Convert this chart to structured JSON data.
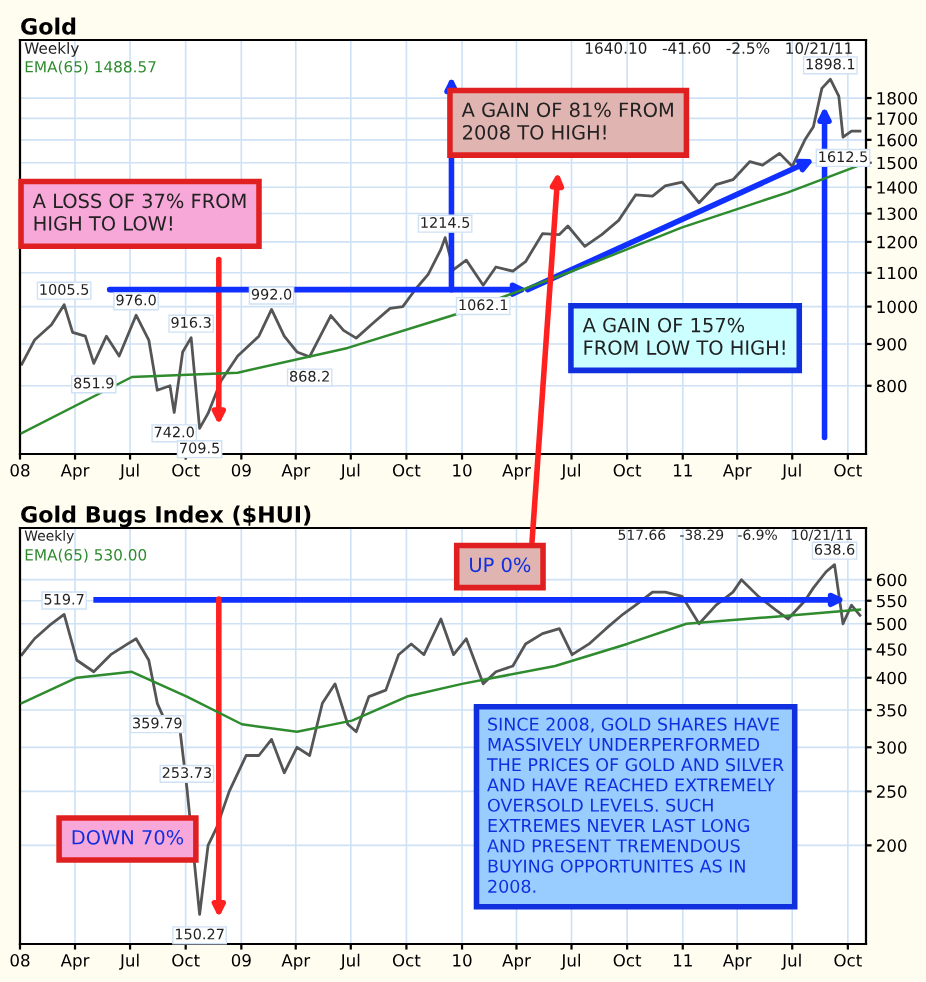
{
  "chart_data": [
    {
      "type": "line",
      "title": "Gold",
      "log": true,
      "grid": true,
      "legend": "top left",
      "xlim": [
        "2008-01-01",
        "2011-10-31"
      ],
      "ylim": [
        660,
        2120
      ],
      "xticks": [
        {
          "value": "2008-01-01",
          "label": "08"
        },
        {
          "value": "2008-04-01",
          "label": "Apr"
        },
        {
          "value": "2008-07-01",
          "label": "Jul"
        },
        {
          "value": "2008-10-01",
          "label": "Oct"
        },
        {
          "value": "2009-01-01",
          "label": "09"
        },
        {
          "value": "2009-04-01",
          "label": "Apr"
        },
        {
          "value": "2009-07-01",
          "label": "Jul"
        },
        {
          "value": "2009-10-01",
          "label": "Oct"
        },
        {
          "value": "2010-01-01",
          "label": "10"
        },
        {
          "value": "2010-04-01",
          "label": "Apr"
        },
        {
          "value": "2010-07-01",
          "label": "Jul"
        },
        {
          "value": "2010-10-01",
          "label": "Oct"
        },
        {
          "value": "2011-01-01",
          "label": "11"
        },
        {
          "value": "2011-04-01",
          "label": "Apr"
        },
        {
          "value": "2011-07-01",
          "label": "Jul"
        },
        {
          "value": "2011-10-01",
          "label": "Oct"
        }
      ],
      "yticks": [
        800,
        900,
        1000,
        1100,
        1200,
        1300,
        1400,
        1500,
        1600,
        1700,
        1800
      ],
      "series": [
        {
          "color": "#555555",
          "x": [
            "2008-01-04",
            "2008-01-25",
            "2008-02-22",
            "2008-03-14",
            "2008-03-28",
            "2008-04-18",
            "2008-05-02",
            "2008-05-23",
            "2008-06-13",
            "2008-07-11",
            "2008-08-01",
            "2008-08-15",
            "2008-09-05",
            "2008-09-12",
            "2008-09-26",
            "2008-10-10",
            "2008-10-24",
            "2008-11-07",
            "2008-11-28",
            "2008-12-26",
            "2009-01-30",
            "2009-02-20",
            "2009-03-13",
            "2009-04-03",
            "2009-04-24",
            "2009-05-29",
            "2009-06-19",
            "2009-07-10",
            "2009-08-07",
            "2009-09-04",
            "2009-09-25",
            "2009-10-16",
            "2009-11-06",
            "2009-11-27",
            "2009-12-04",
            "2009-12-18",
            "2010-01-08",
            "2010-02-05",
            "2010-02-26",
            "2010-03-26",
            "2010-04-16",
            "2010-05-14",
            "2010-06-11",
            "2010-06-25",
            "2010-07-23",
            "2010-08-20",
            "2010-09-17",
            "2010-10-15",
            "2010-11-12",
            "2010-12-03",
            "2010-12-31",
            "2011-01-28",
            "2011-02-25",
            "2011-03-25",
            "2011-04-22",
            "2011-05-13",
            "2011-06-10",
            "2011-07-01",
            "2011-07-22",
            "2011-08-05",
            "2011-08-19",
            "2011-09-02",
            "2011-09-16",
            "2011-09-23",
            "2011-10-07",
            "2011-10-21"
          ],
          "values": [
            850,
            910,
            950,
            1005.5,
            930,
            920,
            851.9,
            920,
            870,
            976.0,
            910,
            790,
            800,
            742.0,
            880,
            916.3,
            709.5,
            740,
            810,
            870,
            920,
            992.0,
            920,
            880,
            868.2,
            975,
            935,
            915,
            955,
            995,
            1000,
            1050,
            1095,
            1175,
            1214.5,
            1110,
            1140,
            1062.1,
            1118,
            1105,
            1135,
            1228,
            1225,
            1255,
            1185,
            1225,
            1275,
            1370,
            1365,
            1405,
            1420,
            1340,
            1410,
            1430,
            1505,
            1490,
            1540,
            1485,
            1600,
            1660,
            1850,
            1898.1,
            1810,
            1612.5,
            1640,
            1640
          ]
        },
        {
          "name": "EMA(65) 1488.57",
          "color": "#2e8b2e",
          "x": [
            "2008-01-04",
            "2008-07-04",
            "2008-12-26",
            "2009-06-26",
            "2009-12-25",
            "2010-06-25",
            "2010-12-31",
            "2011-06-24",
            "2011-10-21"
          ],
          "values": [
            700,
            820,
            830,
            890,
            980,
            1100,
            1250,
            1380,
            1490
          ]
        }
      ],
      "annotations": [
        "Weekly",
        "1640.10   -41.60   -2.5%   10/21/11",
        "A LOSS OF 37% FROM\nHIGH TO LOW!",
        "A GAIN OF 81% FROM\n2008 TO HIGH!",
        "A GAIN OF 157%\nFROM LOW TO HIGH!",
        {
          "text": "1005.5",
          "x": "2008-03-14",
          "y": 1005.5
        },
        {
          "text": "851.9",
          "x": "2008-05-02",
          "y": 851.9
        },
        {
          "text": "976.0",
          "x": "2008-07-11",
          "y": 976.0
        },
        {
          "text": "742.0",
          "x": "2008-09-12",
          "y": 742.0
        },
        {
          "text": "916.3",
          "x": "2008-10-10",
          "y": 916.3
        },
        {
          "text": "709.5",
          "x": "2008-10-24",
          "y": 709.5
        },
        {
          "text": "992.0",
          "x": "2009-02-20",
          "y": 992.0
        },
        {
          "text": "868.2",
          "x": "2009-04-24",
          "y": 868.2
        },
        {
          "text": "1214.5",
          "x": "2009-12-04",
          "y": 1214.5
        },
        {
          "text": "1062.1",
          "x": "2010-02-05",
          "y": 1062.1
        },
        {
          "text": "1898.1",
          "x": "2011-09-02",
          "y": 1898.1
        },
        {
          "text": "1612.5",
          "x": "2011-09-23",
          "y": 1612.5
        }
      ]
    },
    {
      "type": "line",
      "title": "Gold Bugs Index ($HUI)",
      "log": true,
      "grid": true,
      "legend": "top left",
      "xlim": [
        "2008-01-01",
        "2011-10-31"
      ],
      "ylim": [
        133,
        743
      ],
      "xticks": [
        {
          "value": "2008-01-01",
          "label": "08"
        },
        {
          "value": "2008-04-01",
          "label": "Apr"
        },
        {
          "value": "2008-07-01",
          "label": "Jul"
        },
        {
          "value": "2008-10-01",
          "label": "Oct"
        },
        {
          "value": "2009-01-01",
          "label": "09"
        },
        {
          "value": "2009-04-01",
          "label": "Apr"
        },
        {
          "value": "2009-07-01",
          "label": "Jul"
        },
        {
          "value": "2009-10-01",
          "label": "Oct"
        },
        {
          "value": "2010-01-01",
          "label": "10"
        },
        {
          "value": "2010-04-01",
          "label": "Apr"
        },
        {
          "value": "2010-07-01",
          "label": "Jul"
        },
        {
          "value": "2010-10-01",
          "label": "Oct"
        },
        {
          "value": "2011-01-01",
          "label": "11"
        },
        {
          "value": "2011-04-01",
          "label": "Apr"
        },
        {
          "value": "2011-07-01",
          "label": "Jul"
        },
        {
          "value": "2011-10-01",
          "label": "Oct"
        }
      ],
      "yticks": [
        200,
        250,
        300,
        350,
        400,
        450,
        500,
        550,
        600
      ],
      "ref_lines": [
        {
          "axis": "y",
          "value": 552,
          "color": "#1030ff"
        }
      ],
      "series": [
        {
          "color": "#555555",
          "x": [
            "2008-01-04",
            "2008-01-25",
            "2008-02-22",
            "2008-03-14",
            "2008-04-04",
            "2008-05-02",
            "2008-05-30",
            "2008-06-27",
            "2008-07-11",
            "2008-08-01",
            "2008-08-15",
            "2008-09-05",
            "2008-09-19",
            "2008-10-03",
            "2008-10-24",
            "2008-11-07",
            "2008-11-21",
            "2008-12-12",
            "2009-01-09",
            "2009-01-30",
            "2009-02-20",
            "2009-03-13",
            "2009-04-03",
            "2009-04-24",
            "2009-05-15",
            "2009-06-05",
            "2009-06-26",
            "2009-07-10",
            "2009-07-31",
            "2009-08-28",
            "2009-09-18",
            "2009-10-09",
            "2009-10-30",
            "2009-11-27",
            "2009-12-18",
            "2010-01-08",
            "2010-02-05",
            "2010-02-26",
            "2010-03-26",
            "2010-04-16",
            "2010-05-14",
            "2010-06-11",
            "2010-07-02",
            "2010-07-30",
            "2010-08-27",
            "2010-09-24",
            "2010-10-15",
            "2010-11-12",
            "2010-12-03",
            "2010-12-31",
            "2011-01-28",
            "2011-02-25",
            "2011-03-25",
            "2011-04-08",
            "2011-05-06",
            "2011-06-03",
            "2011-06-24",
            "2011-07-22",
            "2011-08-05",
            "2011-08-26",
            "2011-09-09",
            "2011-09-23",
            "2011-10-07",
            "2011-10-21"
          ],
          "values": [
            440,
            470,
            500,
            519.7,
            430,
            410,
            440,
            460,
            470,
            430,
            359.79,
            320,
            340,
            253.73,
            150.27,
            200,
            215,
            250,
            290,
            290,
            310,
            270,
            300,
            290,
            360,
            390,
            330,
            320,
            370,
            380,
            440,
            460,
            440,
            510,
            440,
            470,
            390,
            410,
            420,
            460,
            480,
            490,
            440,
            460,
            490,
            520,
            540,
            570,
            570,
            560,
            500,
            540,
            570,
            600,
            560,
            530,
            510,
            550,
            580,
            620,
            638.6,
            500,
            540,
            518
          ]
        },
        {
          "name": "EMA(65) 530.00",
          "color": "#2e8b2e",
          "x": [
            "2008-01-04",
            "2008-04-04",
            "2008-07-04",
            "2008-10-03",
            "2009-01-02",
            "2009-04-03",
            "2009-07-03",
            "2009-10-02",
            "2010-01-01",
            "2010-06-04",
            "2010-10-01",
            "2011-01-07",
            "2011-06-03",
            "2011-10-21"
          ],
          "values": [
            360,
            400,
            410,
            370,
            330,
            320,
            335,
            370,
            390,
            420,
            460,
            500,
            515,
            530
          ]
        }
      ],
      "annotations": [
        "Weekly",
        "517.66   -38.29   -6.9%   10/21/11",
        "UP 0%",
        "DOWN 70%",
        "SINCE 2008, GOLD SHARES HAVE\nMASSIVELY UNDERPERFORMED\nTHE PRICES OF GOLD AND SILVER\nAND HAVE REACHED EXTREMELY\nOVERSOLD LEVELS. SUCH\nEXTREMES NEVER LAST LONG\nAND PRESENT TREMENDOUS\nBUYING OPPORTUNITES AS IN\n2008.",
        {
          "text": "519.7",
          "x": "2008-03-14",
          "y": 519.7
        },
        {
          "text": "359.79",
          "x": "2008-08-15",
          "y": 359.79
        },
        {
          "text": "253.73",
          "x": "2008-10-03",
          "y": 253.73
        },
        {
          "text": "150.27",
          "x": "2008-10-24",
          "y": 150.27
        },
        {
          "text": "638.6",
          "x": "2011-09-09",
          "y": 638.6
        }
      ]
    }
  ]
}
